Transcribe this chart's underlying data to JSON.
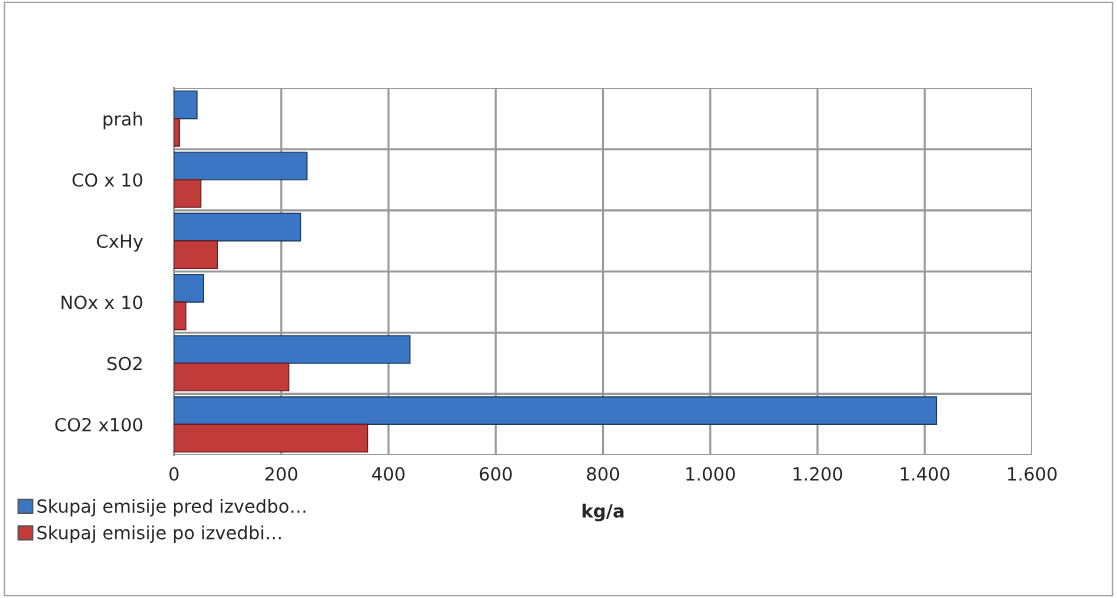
{
  "chart_data": {
    "type": "bar",
    "orientation": "horizontal",
    "xlabel": "kg/a",
    "categories": [
      "prah",
      "CO x 10",
      "CxHy",
      "NOx x 10",
      "SO2",
      "CO2 x100"
    ],
    "series": [
      {
        "name": "Skupaj emisije pred izvedbo…",
        "color": "#3a76c4",
        "values": [
          43,
          248,
          236,
          55,
          440,
          1422
        ]
      },
      {
        "name": "Skupaj emisije po izvedbi…",
        "color": "#c23b3b",
        "values": [
          10,
          50,
          81,
          22,
          214,
          361
        ]
      }
    ],
    "xlim": [
      0,
      1600
    ],
    "xticks": [
      0,
      200,
      400,
      600,
      800,
      {
        "value": 1000,
        "label": "1.000"
      },
      {
        "value": 1200,
        "label": "1.200"
      },
      {
        "value": 1400,
        "label": "1.400"
      },
      {
        "value": 1600,
        "label": "1.600"
      }
    ],
    "grid": true,
    "legend": "bottom left"
  }
}
